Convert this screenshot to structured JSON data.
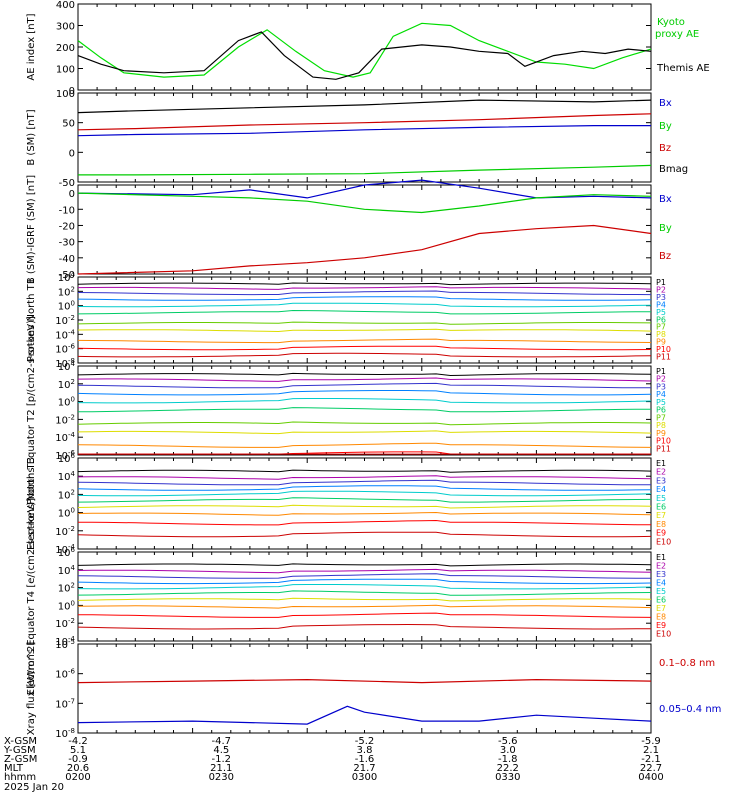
{
  "chart_data": [
    {
      "type": "line",
      "ylabel": "AE index [nT]",
      "ylim": [
        0,
        400
      ],
      "yticks": [
        "0",
        "100",
        "200",
        "300",
        "400"
      ],
      "yscale": "linear",
      "series": [
        {
          "name": "Kyoto proxy AE",
          "color": "#00dd00",
          "x": [
            0,
            0.04,
            0.08,
            0.15,
            0.22,
            0.28,
            0.33,
            0.38,
            0.43,
            0.48,
            0.51,
            0.55,
            0.6,
            0.65,
            0.7,
            0.75,
            0.8,
            0.85,
            0.9,
            0.95,
            1
          ],
          "y": [
            230,
            150,
            80,
            60,
            70,
            200,
            280,
            180,
            90,
            60,
            80,
            250,
            310,
            300,
            230,
            180,
            130,
            120,
            100,
            150,
            190
          ]
        },
        {
          "name": "Themis AE",
          "color": "#000000",
          "x": [
            0,
            0.04,
            0.08,
            0.15,
            0.22,
            0.28,
            0.32,
            0.36,
            0.41,
            0.45,
            0.49,
            0.53,
            0.6,
            0.65,
            0.7,
            0.75,
            0.78,
            0.83,
            0.88,
            0.92,
            0.96,
            1
          ],
          "y": [
            160,
            120,
            90,
            80,
            90,
            230,
            270,
            160,
            60,
            50,
            80,
            190,
            210,
            200,
            180,
            170,
            110,
            160,
            180,
            170,
            190,
            180
          ]
        }
      ]
    },
    {
      "type": "line",
      "ylabel": "B (SM) [nT]",
      "ylim": [
        -50,
        100
      ],
      "yticks": [
        "-50",
        "0",
        "50",
        "100"
      ],
      "yscale": "linear",
      "series": [
        {
          "name": "Bx",
          "color": "#000000",
          "x": [
            0,
            0.1,
            0.3,
            0.5,
            0.7,
            0.9,
            1
          ],
          "y": [
            67,
            70,
            75,
            80,
            88,
            85,
            88
          ]
        },
        {
          "name": "By",
          "color": "#00cc00",
          "x": [
            0,
            0.1,
            0.3,
            0.5,
            0.7,
            0.9,
            1
          ],
          "y": [
            -38,
            -38,
            -37,
            -36,
            -30,
            -25,
            -22
          ]
        },
        {
          "name": "Bz",
          "color": "#cc0000",
          "x": [
            0,
            0.1,
            0.3,
            0.5,
            0.7,
            0.9,
            1
          ],
          "y": [
            38,
            40,
            46,
            50,
            55,
            62,
            65
          ]
        },
        {
          "name": "Bmag",
          "color": "#0000cc",
          "x": [
            0,
            0.1,
            0.3,
            0.5,
            0.7,
            0.9,
            1
          ],
          "y": [
            28,
            30,
            32,
            38,
            42,
            45,
            45
          ]
        }
      ]
    },
    {
      "type": "line",
      "ylabel": "B (SM)-IGRF (SM) [nT]",
      "ylim": [
        -50,
        5
      ],
      "yticks": [
        "-50",
        "-40",
        "-30",
        "-20",
        "-10",
        "0"
      ],
      "yscale": "linear",
      "series": [
        {
          "name": "Bx",
          "color": "#0000cc",
          "x": [
            0,
            0.2,
            0.3,
            0.4,
            0.5,
            0.6,
            0.7,
            0.8,
            0.9,
            1
          ],
          "y": [
            0,
            -1,
            2,
            -3,
            5,
            8,
            3,
            -3,
            -2,
            -3
          ]
        },
        {
          "name": "By",
          "color": "#00cc00",
          "x": [
            0,
            0.2,
            0.3,
            0.4,
            0.5,
            0.6,
            0.7,
            0.8,
            0.9,
            1
          ],
          "y": [
            0,
            -2,
            -3,
            -5,
            -10,
            -12,
            -8,
            -3,
            -1,
            -2
          ]
        },
        {
          "name": "Bz",
          "color": "#cc0000",
          "x": [
            0,
            0.2,
            0.3,
            0.4,
            0.5,
            0.6,
            0.7,
            0.8,
            0.9,
            1
          ],
          "y": [
            -50,
            -48,
            -45,
            -43,
            -40,
            -35,
            -25,
            -22,
            -20,
            -25
          ]
        }
      ]
    },
    {
      "type": "line",
      "ylabel": "Protons North T1",
      "ylim": [
        -8,
        4
      ],
      "yticks": [
        "10-8",
        "10-6",
        "10-4",
        "10-2",
        "100",
        "102",
        "104"
      ],
      "yscale": "log",
      "level_names": [
        "P1",
        "P2",
        "P3",
        "P4",
        "P5",
        "P6",
        "P7",
        "P8",
        "P9",
        "P10",
        "P11"
      ],
      "level_log_values": [
        3.0,
        2.4,
        1.7,
        0.9,
        0,
        -1,
        -2.5,
        -3.5,
        -5,
        -6,
        -7
      ]
    },
    {
      "type": "line",
      "ylabel": "Protons Equator T2 [p/(cm2-s-sr-keV)]",
      "ylim": [
        -6,
        4
      ],
      "yticks": [
        "10-6",
        "10-4",
        "10-2",
        "100",
        "102",
        "104"
      ],
      "yscale": "log",
      "level_names": [
        "P1",
        "P2",
        "P3",
        "P4",
        "P5",
        "P6",
        "P7",
        "P8",
        "P9",
        "P10",
        "P11"
      ],
      "level_log_values": [
        3.0,
        2.4,
        1.7,
        0.9,
        0,
        -1,
        -2.5,
        -3.5,
        -5,
        -6,
        -7
      ]
    },
    {
      "type": "line",
      "ylabel": "Electrons North T3",
      "ylim": [
        -4,
        6
      ],
      "yticks": [
        "10-4",
        "10-2",
        "100",
        "102",
        "104",
        "106"
      ],
      "yscale": "log",
      "level_names": [
        "E1",
        "E2",
        "E3",
        "E4",
        "E5",
        "E6",
        "E7",
        "E8",
        "E9",
        "E10"
      ],
      "level_log_values": [
        4.5,
        3.8,
        3.2,
        2.6,
        2.0,
        1.3,
        0.6,
        -0.2,
        -1.2,
        -2.5
      ]
    },
    {
      "type": "line",
      "ylabel": "Electrons Equator T4 [e/(cm2-s-sr-keV)]",
      "ylim": [
        -4,
        6
      ],
      "yticks": [
        "10-4",
        "10-2",
        "100",
        "102",
        "104",
        "106"
      ],
      "yscale": "log",
      "level_names": [
        "E1",
        "E2",
        "E3",
        "E4",
        "E5",
        "E6",
        "E7",
        "E8",
        "E9",
        "E10"
      ],
      "level_log_values": [
        4.5,
        3.8,
        3.2,
        2.6,
        2.0,
        1.3,
        0.6,
        -0.2,
        -1.2,
        -2.5
      ]
    },
    {
      "type": "line",
      "ylabel": "Xray flux [W/m^2]",
      "ylim": [
        -8,
        -5
      ],
      "yticks": [
        "10-8",
        "10-7",
        "10-6",
        "10-5"
      ],
      "yscale": "log",
      "series": [
        {
          "name": "0.1-0.8 nm",
          "color": "#cc0000",
          "x": [
            0,
            0.2,
            0.4,
            0.6,
            0.8,
            1
          ],
          "y": [
            -6.3,
            -6.25,
            -6.2,
            -6.3,
            -6.2,
            -6.25
          ]
        },
        {
          "name": "0.05-0.4 nm",
          "color": "#0000cc",
          "x": [
            0,
            0.2,
            0.4,
            0.47,
            0.5,
            0.6,
            0.7,
            0.8,
            0.9,
            1
          ],
          "y": [
            -7.65,
            -7.6,
            -7.7,
            -7.1,
            -7.3,
            -7.6,
            -7.6,
            -7.4,
            -7.5,
            -7.6
          ]
        }
      ]
    }
  ],
  "legend_ae": {
    "kyoto": "Kyoto proxy AE",
    "themis": "Themis AE"
  },
  "legend_b": {
    "bx": "Bx",
    "by": "By",
    "bz": "Bz",
    "bmag": "Bmag"
  },
  "legend_db": {
    "bx": "Bx",
    "by": "By",
    "bz": "Bz"
  },
  "legend_xray": {
    "long": "0.1–0.8 nm",
    "short": "0.05–0.4 nm"
  },
  "ephemeris": {
    "row_labels": [
      "X-GSM",
      "Y-GSM",
      "Z-GSM",
      "MLT",
      "hhmm",
      "2025 Jan 20"
    ],
    "columns": [
      [
        "-4.2",
        "5.1",
        "-0.9",
        "20.6",
        "0200"
      ],
      [
        "-4.7",
        "4.5",
        "-1.2",
        "21.1",
        "0230"
      ],
      [
        "-5.2",
        "3.8",
        "-1.6",
        "21.7",
        "0300"
      ],
      [
        "-5.6",
        "3.0",
        "-1.8",
        "22.2",
        "0330"
      ],
      [
        "-5.9",
        "2.1",
        "-2.1",
        "22.7",
        "0400"
      ]
    ]
  },
  "colors": {
    "p_levels": [
      "#000000",
      "#aa00aa",
      "#3333cc",
      "#0080ff",
      "#00cccc",
      "#00cc66",
      "#66cc00",
      "#dddd00",
      "#ff8800",
      "#ff0000",
      "#cc0000"
    ],
    "e_levels": [
      "#000000",
      "#aa00aa",
      "#3333cc",
      "#0080ff",
      "#00cccc",
      "#00cc66",
      "#dddd00",
      "#ff8800",
      "#ff0000",
      "#cc0000"
    ]
  }
}
